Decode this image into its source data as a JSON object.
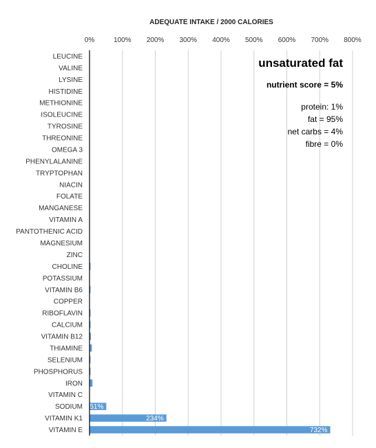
{
  "chart_data": {
    "type": "bar",
    "orientation": "horizontal",
    "title": "ADEQUATE INTAKE / 2000 CALORIES",
    "xlim": [
      0,
      800
    ],
    "x_ticks": [
      "0%",
      "100%",
      "200%",
      "300%",
      "400%",
      "500%",
      "600%",
      "700%",
      "800%"
    ],
    "grid": "vertical",
    "bar_color": "#5b9bd5",
    "categories": [
      "LEUCINE",
      "VALINE",
      "LYSINE",
      "HISTIDINE",
      "METHIONINE",
      "ISOLEUCINE",
      "TYROSINE",
      "THREONINE",
      "OMEGA 3",
      "PHENYLALANINE",
      "TRYPTOPHAN",
      "NIACIN",
      "FOLATE",
      "MANGANESE",
      "VITAMIN A",
      "PANTOTHENIC ACID",
      "MAGNESIUM",
      "ZINC",
      "CHOLINE",
      "POTASSIUM",
      "VITAMIN B6",
      "COPPER",
      "RIBOFLAVIN",
      "CALCIUM",
      "VITAMIN B12",
      "THIAMINE",
      "SELENIUM",
      "PHOSPHORUS",
      "IRON",
      "VITAMIN C",
      "SODIUM",
      "VITAMIN K1",
      "VITAMIN E"
    ],
    "values": [
      0,
      0,
      0,
      0,
      0,
      0,
      0,
      0,
      0,
      0,
      0,
      0,
      0,
      0,
      0.3,
      0.3,
      0.5,
      0.3,
      3,
      1,
      3,
      1,
      3,
      3,
      4,
      7,
      3,
      3,
      9,
      0,
      51,
      234,
      732
    ],
    "data_labels": {
      "30": "51%",
      "31": "234%",
      "32": "732%"
    }
  },
  "info": {
    "name": "unsaturated fat",
    "score": "nutrient score = 5%",
    "lines": [
      "protein: 1%",
      "fat = 95%",
      "net carbs = 4%",
      "fibre = 0%"
    ]
  }
}
